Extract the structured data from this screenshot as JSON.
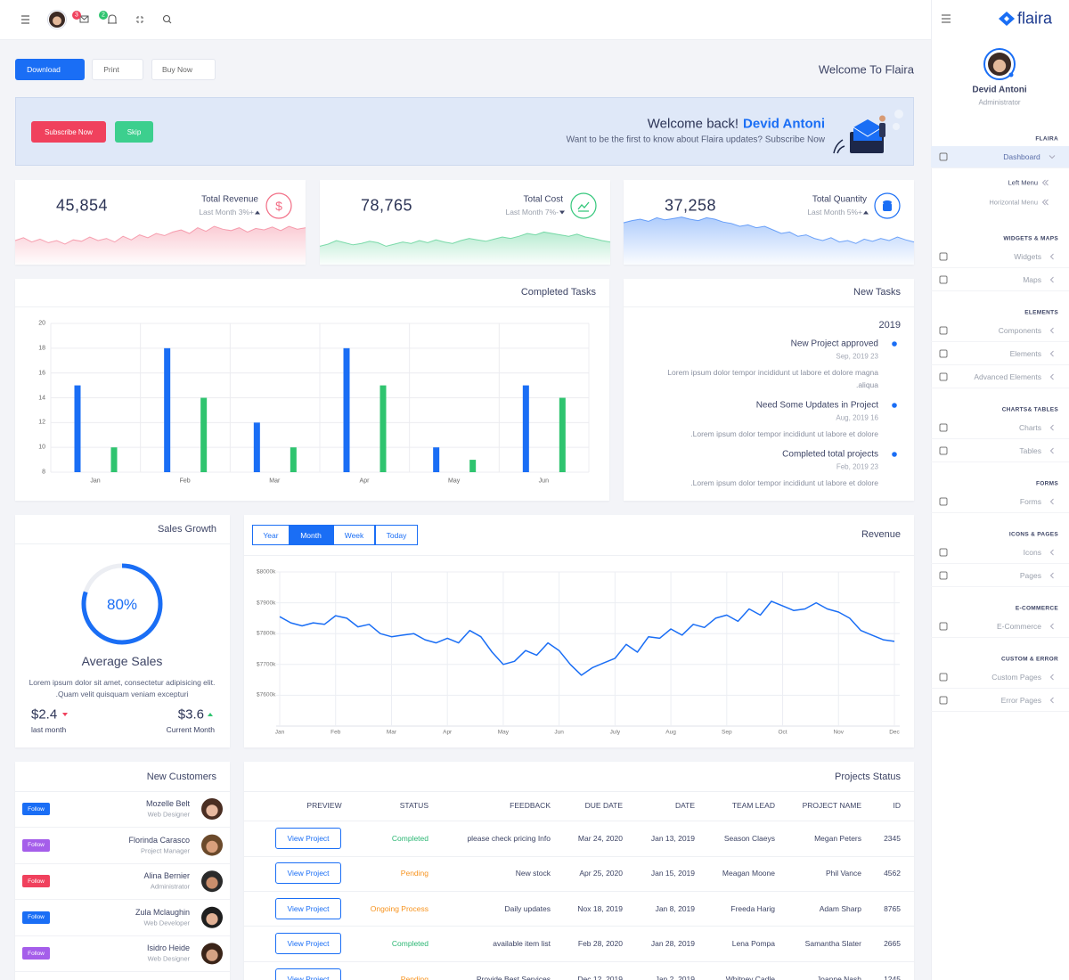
{
  "topbar": {
    "badges": [
      "3",
      "2"
    ]
  },
  "toolbar": {
    "buttons": [
      "Download",
      "Print",
      "Buy Now"
    ],
    "welcome": "Welcome To Flaira"
  },
  "banner": {
    "buttons": [
      "Subscribe Now",
      "Skip"
    ],
    "greeting": "Welcome back!",
    "name": "Devid Antoni",
    "message": "Want to be the first to know about Flaira updates? Subscribe Now"
  },
  "stats": [
    {
      "value": "45,854",
      "label": "Total Revenue",
      "change": "Last Month 3%+",
      "icon": "$",
      "trend": "up",
      "color": "#f26d85",
      "spark": {
        "type": "area",
        "ylim": [
          0,
          100
        ],
        "values": [
          30,
          34,
          28,
          32,
          27,
          30,
          25,
          31,
          29,
          35,
          30,
          33,
          28,
          36,
          31,
          38,
          34,
          40,
          37,
          42,
          45,
          40,
          48,
          43,
          50,
          46,
          44,
          48,
          42,
          47,
          45,
          49,
          44,
          50,
          46,
          48
        ]
      }
    },
    {
      "value": "78,765",
      "label": "Total Cost",
      "change": "Last Month 7%-",
      "trend": "down",
      "color": "#34c77b",
      "spark": {
        "type": "area",
        "ylim": [
          0,
          100
        ],
        "values": [
          22,
          25,
          30,
          27,
          24,
          26,
          29,
          27,
          22,
          25,
          28,
          26,
          30,
          27,
          31,
          28,
          26,
          30,
          33,
          31,
          29,
          32,
          35,
          33,
          36,
          40,
          38,
          42,
          40,
          38,
          36,
          39,
          35,
          33,
          30,
          28
        ]
      }
    },
    {
      "value": "37,258",
      "label": "Total Quantity",
      "change": "Last Month 5%+",
      "trend": "up",
      "color": "#1a6ef5",
      "spark": {
        "type": "area",
        "ylim": [
          0,
          100
        ],
        "values": [
          55,
          58,
          60,
          57,
          62,
          59,
          61,
          63,
          60,
          58,
          62,
          60,
          56,
          54,
          50,
          52,
          48,
          50,
          45,
          40,
          42,
          36,
          38,
          33,
          30,
          34,
          28,
          30,
          26,
          32,
          29,
          33,
          30,
          35,
          31,
          28
        ]
      }
    }
  ],
  "completed_tasks": {
    "type": "bar",
    "title": "Completed Tasks",
    "categories": [
      "Jan",
      "Feb",
      "Mar",
      "Apr",
      "May",
      "Jun"
    ],
    "series": [
      {
        "color": "#1a6ef5",
        "values": [
          15,
          18,
          12,
          18,
          10,
          15
        ]
      },
      {
        "color": "#2fc46f",
        "values": [
          10,
          14,
          10,
          15,
          9,
          14
        ]
      }
    ],
    "ylim": [
      8,
      20
    ],
    "yticks": [
      8,
      10,
      12,
      14,
      16,
      18,
      20
    ],
    "grid": true
  },
  "new_tasks": {
    "title": "New Tasks",
    "year": "2019",
    "items": [
      {
        "title": "New Project approved",
        "date": "Sep, 2019 23",
        "text": "Lorem ipsum dolor tempor incididunt ut labore et dolore magna aliqua."
      },
      {
        "title": "Need Some Updates in Project",
        "date": "Aug, 2019 16",
        "text": "Lorem ipsum dolor tempor incididunt ut labore et dolore."
      },
      {
        "title": "Completed total projects",
        "date": "Feb, 2019 23",
        "text": "Lorem ipsum dolor tempor incididunt ut labore et dolore."
      }
    ]
  },
  "sales_growth": {
    "title": "Sales Growth",
    "value": 80,
    "value_label": "80%",
    "heading": "Average Sales",
    "text": "Lorem ipsum dolor sit amet, consectetur adipisicing elit. Quam velit quisquam veniam excepturi.",
    "stats": [
      {
        "value": "$2.4",
        "label": "last month",
        "trend": "down"
      },
      {
        "value": "$3.6",
        "label": "Current Month",
        "trend": "up"
      }
    ]
  },
  "revenue": {
    "title": "Revenue",
    "tabs": [
      "Year",
      "Month",
      "Week",
      "Today"
    ],
    "active_tab": 1,
    "chart": {
      "type": "line",
      "color": "#1a6ef5",
      "categories": [
        "Jan",
        null,
        null,
        null,
        null,
        "Feb",
        null,
        null,
        null,
        null,
        "Mar",
        null,
        null,
        null,
        null,
        "Apr",
        null,
        null,
        null,
        null,
        "May",
        null,
        null,
        null,
        null,
        "Jun",
        null,
        null,
        null,
        null,
        "July",
        null,
        null,
        null,
        null,
        "Aug",
        null,
        null,
        null,
        null,
        "Sep",
        null,
        null,
        null,
        null,
        "Oct",
        null,
        null,
        null,
        null,
        "Nov",
        null,
        null,
        null,
        null,
        "Dec"
      ],
      "values": [
        7855,
        7835,
        7825,
        7835,
        7830,
        7858,
        7850,
        7822,
        7830,
        7800,
        7790,
        7795,
        7800,
        7780,
        7770,
        7785,
        7770,
        7810,
        7790,
        7740,
        7700,
        7710,
        7745,
        7730,
        7770,
        7745,
        7700,
        7665,
        7690,
        7705,
        7720,
        7765,
        7740,
        7790,
        7785,
        7815,
        7795,
        7830,
        7820,
        7850,
        7860,
        7840,
        7880,
        7860,
        7905,
        7890,
        7875,
        7880,
        7900,
        7880,
        7870,
        7850,
        7810,
        7795,
        7780,
        7775
      ],
      "ylim": [
        7500,
        8000
      ],
      "yticks": [
        {
          "value": 7600,
          "label": "$7600k"
        },
        {
          "value": 7700,
          "label": "$7700k"
        },
        {
          "value": 7800,
          "label": "$7800k"
        },
        {
          "value": 7900,
          "label": "$7900k"
        },
        {
          "value": 8000,
          "label": "$8000k"
        }
      ],
      "grid": true
    }
  },
  "customers": {
    "title": "New Customers",
    "button": "Follow",
    "rows": [
      {
        "name": "Mozelle Belt",
        "role": "Web Designer",
        "color": "#1a6ef5"
      },
      {
        "name": "Florinda Carasco",
        "role": "Project Manager",
        "color": "#a55eea"
      },
      {
        "name": "Alina Bernier",
        "role": "Administrator",
        "color": "#f0415d"
      },
      {
        "name": "Zula Mclaughin",
        "role": "Web Developer",
        "color": "#1a6ef5"
      },
      {
        "name": "Isidro Heide",
        "role": "Web Designer",
        "color": "#a55eea"
      }
    ]
  },
  "projects": {
    "title": "Projects Status",
    "button": "View Project",
    "columns": [
      "PREVIEW",
      "STATUS",
      "FEEDBACK",
      "DUE DATE",
      "DATE",
      "TEAM LEAD",
      "PROJECT NAME",
      "ID"
    ],
    "status_colors": {
      "Completed": "#2bb673",
      "Pending": "#f7931e",
      "Ongoing Process": "#f7931e"
    },
    "rows": [
      [
        "Completed",
        "please check pricing Info",
        "Mar 24, 2020",
        "Jan 13, 2019",
        "Season Claeys",
        "Megan Peters",
        "2345"
      ],
      [
        "Pending",
        "New stock",
        "Apr 25, 2020",
        "Jan 15, 2019",
        "Meagan Moone",
        "Phil Vance",
        "4562"
      ],
      [
        "Ongoing Process",
        "Daily updates",
        "Nox 18, 2019",
        "Jan 8, 2019",
        "Freeda Harig",
        "Adam Sharp",
        "8765"
      ],
      [
        "Completed",
        "available item list",
        "Feb 28, 2020",
        "Jan 28, 2019",
        "Lena Pompa",
        "Samantha Slater",
        "2665"
      ],
      [
        "Pending",
        "Provide Best Services",
        "Dec 12, 2019",
        "Jan 2, 2019",
        "Whitney Cadle",
        "Joanne Nash",
        "1245"
      ]
    ]
  },
  "sidebar": {
    "brand": "flaira",
    "user": "Devid Antoni",
    "role": "Administrator",
    "sections": [
      {
        "title": "FLAIRA",
        "items": [
          {
            "label": "Dashboard",
            "active": true,
            "children": [
              "Left Menu",
              "Horizontal Menu"
            ]
          }
        ]
      },
      {
        "title": "WIDGETS & MAPS",
        "items": [
          {
            "label": "Widgets"
          },
          {
            "label": "Maps"
          }
        ]
      },
      {
        "title": "ELEMENTS",
        "items": [
          {
            "label": "Components"
          },
          {
            "label": "Elements"
          },
          {
            "label": "Advanced Elements"
          }
        ]
      },
      {
        "title": "CHARTS& TABLES",
        "items": [
          {
            "label": "Charts"
          },
          {
            "label": "Tables"
          }
        ]
      },
      {
        "title": "FORMS",
        "items": [
          {
            "label": "Forms"
          }
        ]
      },
      {
        "title": "ICONS & PAGES",
        "items": [
          {
            "label": "Icons"
          },
          {
            "label": "Pages"
          }
        ]
      },
      {
        "title": "E-COMMERCE",
        "items": [
          {
            "label": "E-Commerce"
          }
        ]
      },
      {
        "title": "CUSTOM & ERROR",
        "items": [
          {
            "label": "Custom Pages"
          },
          {
            "label": "Error Pages"
          }
        ]
      }
    ]
  }
}
